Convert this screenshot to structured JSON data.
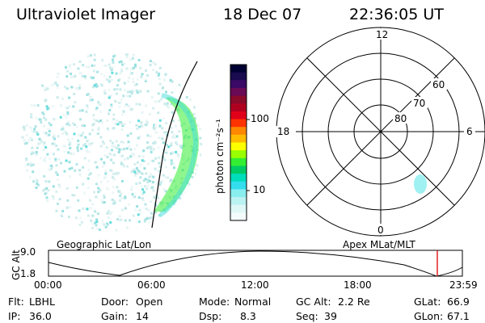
{
  "header": {
    "instrument": "Ultraviolet Imager",
    "date": "18 Dec 07",
    "time": "22:36:05 UT"
  },
  "colorbar": {
    "unit_label": "photon cm⁻²s⁻¹",
    "ticks": [
      "100",
      "10"
    ],
    "colors": [
      "#000033",
      "#1a0a50",
      "#3a0a66",
      "#6a0a55",
      "#8a0a2a",
      "#b00020",
      "#e0001a",
      "#ff3300",
      "#ff8800",
      "#ffbb00",
      "#ffff00",
      "#99ff00",
      "#33ee33",
      "#00cc66",
      "#00ddbb",
      "#33ddee",
      "#88eeee",
      "#bbf2f2",
      "#e0f7f7",
      "#f4fbfb"
    ]
  },
  "left_map": {
    "caption": "Geographic Lat/Lon",
    "aurora_color": "#33ee33",
    "speckle_color": "#66dddd"
  },
  "polar_plot": {
    "caption": "Apex MLat/MLT",
    "mlt_labels": [
      "12",
      "18",
      "6",
      "0"
    ],
    "lat_labels": [
      "60",
      "70",
      "80"
    ]
  },
  "altitude_plot": {
    "ylabel": "GC Alt",
    "yticks": [
      "9.0",
      "1.8"
    ],
    "xticks": [
      "00:00",
      "06:00",
      "12:00",
      "18:00",
      "23:59"
    ],
    "marker_color": "#dd0000"
  },
  "info": {
    "row1": [
      "Flt:",
      "LBHL",
      "Door:",
      "Open",
      "Mode:",
      "Normal",
      "GC Alt:",
      "2.2 Re",
      "GLat:",
      "66.9"
    ],
    "row2": [
      "IP:",
      "36.0",
      "Gain:",
      "14",
      "Dsp:",
      "8.3",
      "Seq:",
      "39",
      "GLon:",
      "67.1"
    ]
  }
}
